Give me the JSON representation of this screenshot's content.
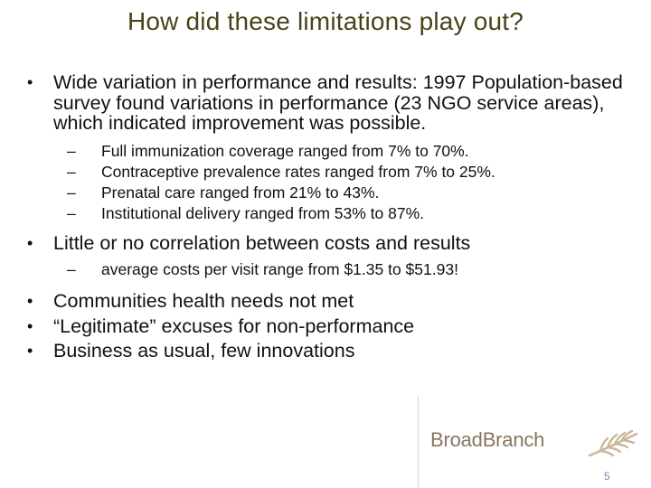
{
  "slide": {
    "title": "How did these limitations play out?",
    "bullets": [
      {
        "text": "Wide variation in performance and results: 1997 Population-based survey found variations in performance (23 NGO service areas), which indicated improvement was possible.",
        "sub": [
          "Full immunization coverage ranged from 7% to 70%.",
          "Contraceptive prevalence rates ranged from 7% to 25%.",
          "Prenatal care ranged from 21% to 43%.",
          "Institutional delivery ranged from 53% to 87%."
        ]
      },
      {
        "text": "Little or no correlation between costs and results",
        "sub": [
          "average costs per visit range from $1.35 to $51.93!"
        ]
      },
      {
        "text": "Communities health needs not met"
      },
      {
        "text": "“Legitimate” excuses for non-performance"
      },
      {
        "text": "Business as usual, few innovations"
      }
    ],
    "bullet_symbol": "•",
    "dash_symbol": "–"
  },
  "footer": {
    "logo_text": "BroadBranch",
    "logo_icon": "wheat-branch-icon",
    "page_number": "5",
    "colors": {
      "title": "#4a4318",
      "logo": "#8a7560",
      "page_number": "#7a8ab0"
    }
  }
}
